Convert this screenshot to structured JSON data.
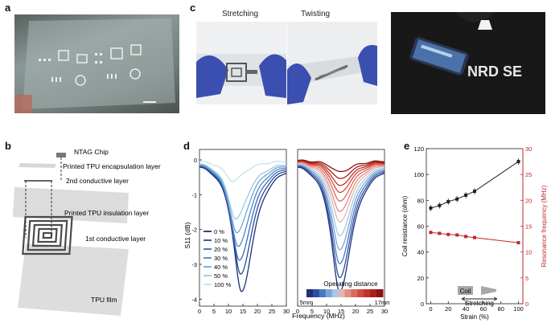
{
  "panels": {
    "a": "a",
    "b": "b",
    "c": "c",
    "d": "d",
    "e": "e"
  },
  "panel_c": {
    "stretching_label": "Stretching",
    "twisting_label": "Twisting",
    "shirt_text": "NRD SE"
  },
  "panel_b": {
    "labels": [
      "NTAG Chip",
      "Printed TPU encapsulation layer",
      "2nd conductive layer",
      "Printed TPU insulation layer",
      "1st conductive layer",
      "TPU film"
    ]
  },
  "panel_d": {
    "ylabel": "S11 (dB)",
    "xlabel": "Frequency (MHz)",
    "colorbar_title": "Operating distance",
    "colorbar_min": "5mm",
    "colorbar_max": "17mm"
  },
  "panel_e": {
    "coil_label": "Coil",
    "stretching_label": "Stretching"
  },
  "chart_data": [
    {
      "type": "line",
      "panel": "d-left",
      "ylabel": "S11 (dB)",
      "xlabel": "Frequency (MHz)",
      "xlim": [
        0,
        30
      ],
      "ylim": [
        -4.2,
        0.3
      ],
      "xticks": [
        0,
        5,
        10,
        15,
        20,
        25,
        30
      ],
      "yticks": [
        0,
        -1,
        -2,
        -3,
        -4
      ],
      "legend_position": "bottom-left",
      "series": [
        {
          "name": "0 %",
          "color": "#1f2f7a",
          "min_freq": 14.5,
          "min_db": -3.8,
          "width": 2.2
        },
        {
          "name": "10 %",
          "color": "#2a4a9a",
          "min_freq": 14.2,
          "min_db": -3.3,
          "width": 2.2
        },
        {
          "name": "20 %",
          "color": "#3b6bb8",
          "min_freq": 13.8,
          "min_db": -2.9,
          "width": 2.2
        },
        {
          "name": "30 %",
          "color": "#4f89c8",
          "min_freq": 13.4,
          "min_db": -2.5,
          "width": 2.2
        },
        {
          "name": "40 %",
          "color": "#6fa8d6",
          "min_freq": 13.0,
          "min_db": -2.1,
          "width": 2.2
        },
        {
          "name": "50 %",
          "color": "#9cc8e2",
          "min_freq": 12.6,
          "min_db": -1.7,
          "width": 2.2
        },
        {
          "name": "100 %",
          "color": "#c4e2ec",
          "min_freq": 11.5,
          "min_db": -0.6,
          "width": 2.2
        }
      ]
    },
    {
      "type": "line",
      "panel": "d-right",
      "xlabel": "Frequency (MHz)",
      "xlim": [
        0,
        30
      ],
      "ylim": [
        -4.2,
        0.3
      ],
      "xticks": [
        0,
        5,
        10,
        15,
        20,
        25,
        30
      ],
      "colorbar": {
        "min": "5mm",
        "max": "17mm"
      },
      "series": [
        {
          "min_freq": 14.5,
          "min_db": -3.8,
          "color": "#1f2f7a"
        },
        {
          "min_freq": 14.5,
          "min_db": -3.4,
          "color": "#2d4d9e"
        },
        {
          "min_freq": 14.5,
          "min_db": -3.0,
          "color": "#4a79c0"
        },
        {
          "min_freq": 14.5,
          "min_db": -2.6,
          "color": "#7aa5d6"
        },
        {
          "min_freq": 14.5,
          "min_db": -2.2,
          "color": "#a9c7e6"
        },
        {
          "min_freq": 14.5,
          "min_db": -1.8,
          "color": "#e5b6b0"
        },
        {
          "min_freq": 14.5,
          "min_db": -1.5,
          "color": "#e38e85"
        },
        {
          "min_freq": 14.5,
          "min_db": -1.2,
          "color": "#d96a5f"
        },
        {
          "min_freq": 14.5,
          "min_db": -0.95,
          "color": "#cf4a3f"
        },
        {
          "min_freq": 14.5,
          "min_db": -0.75,
          "color": "#c0322a"
        },
        {
          "min_freq": 14.5,
          "min_db": -0.55,
          "color": "#a9201b"
        },
        {
          "min_freq": 14.5,
          "min_db": -0.35,
          "color": "#8a1410"
        }
      ]
    },
    {
      "type": "line",
      "panel": "e",
      "xlabel": "Strain (%)",
      "ylabel_left": "Coil resistance (ohm)",
      "ylabel_right": "Resonance frequency (MHz)",
      "xlim": [
        -5,
        105
      ],
      "ylim_left": [
        0,
        120
      ],
      "ylim_right": [
        0,
        30
      ],
      "xticks": [
        0,
        20,
        40,
        60,
        80,
        100
      ],
      "yticks_left": [
        0,
        20,
        40,
        60,
        80,
        100,
        120
      ],
      "yticks_right": [
        0,
        5,
        10,
        15,
        20,
        25,
        30
      ],
      "series": [
        {
          "axis": "left",
          "color": "#222222",
          "marker": "square",
          "x": [
            0,
            10,
            20,
            30,
            40,
            50,
            100
          ],
          "y": [
            74,
            76,
            79,
            81,
            84,
            87,
            110
          ]
        },
        {
          "axis": "right",
          "color": "#c0262d",
          "marker": "square",
          "x": [
            0,
            10,
            20,
            30,
            40,
            50,
            100
          ],
          "y": [
            13.8,
            13.6,
            13.4,
            13.3,
            13.0,
            12.8,
            11.8
          ]
        }
      ]
    }
  ]
}
